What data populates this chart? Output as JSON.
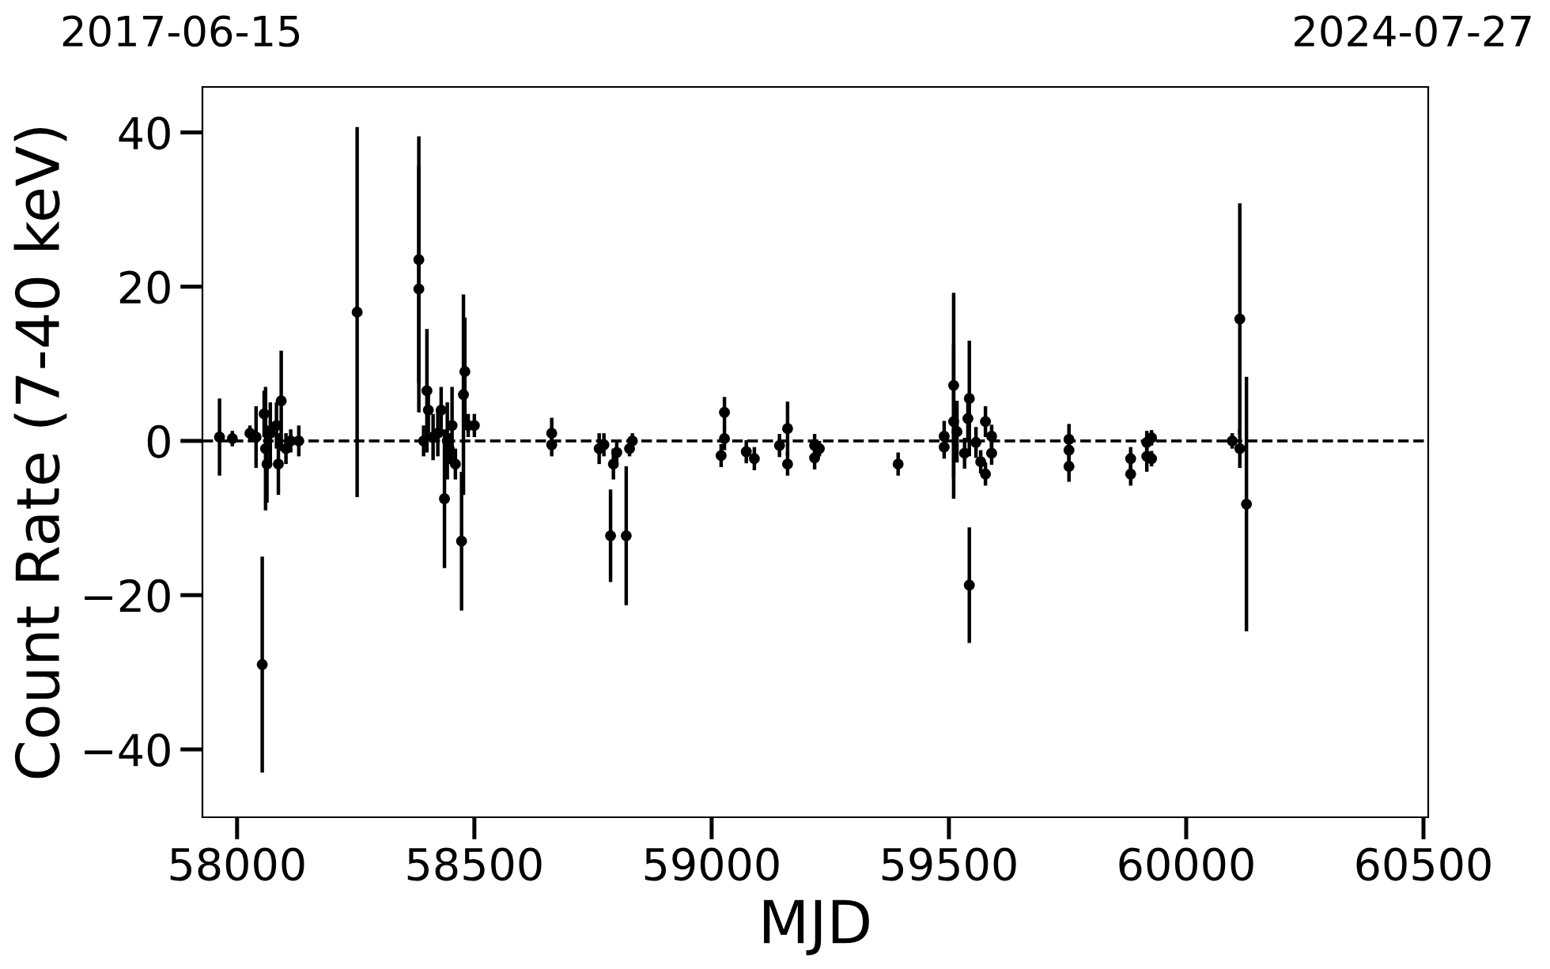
{
  "chart_data": {
    "type": "scatter",
    "xlabel": "MJD",
    "ylabel": "Count Rate (7-40 keV)",
    "annotations": [
      "2017-06-15",
      "2024-07-27"
    ],
    "xlim": [
      57927,
      60510
    ],
    "xticks": [
      58000,
      58500,
      59000,
      59500,
      60000,
      60500
    ],
    "ylim": [
      -48.8,
      45.9
    ],
    "yticks": [
      {
        "value": -40,
        "label": "−40"
      },
      {
        "value": -20,
        "label": "−20"
      },
      0,
      20,
      40
    ],
    "grid": false,
    "marker": "circle",
    "ref_lines": [
      {
        "axis": "y",
        "value": 0,
        "label": null,
        "color": "#000000",
        "line_style": "dashed"
      }
    ],
    "series": [
      {
        "color": "#000000",
        "x": [
          57963,
          57990,
          58027,
          58040,
          58053,
          58057,
          58060,
          58063,
          58070,
          58083,
          58087,
          58093,
          58103,
          58113,
          58130,
          58253,
          58383,
          58383,
          58393,
          58400,
          58403,
          58413,
          58423,
          58430,
          58437,
          58443,
          58447,
          58453,
          58460,
          58473,
          58477,
          58480,
          58487,
          58500,
          58663,
          58663,
          58763,
          58773,
          58787,
          58793,
          58800,
          58820,
          58827,
          58833,
          59020,
          59027,
          59027,
          59073,
          59090,
          59143,
          59160,
          59160,
          59217,
          59217,
          59227,
          59393,
          59490,
          59490,
          59510,
          59510,
          59517,
          59533,
          59540,
          59543,
          59543,
          59557,
          59567,
          59577,
          59577,
          59590,
          59590,
          59753,
          59753,
          59753,
          59883,
          59883,
          59917,
          59917,
          59927,
          59927,
          60097,
          60113,
          60113,
          60127
        ],
        "values": [
          0.5,
          0.3,
          1,
          0.5,
          -29,
          3.5,
          -1,
          -3,
          1,
          2,
          -3,
          5.2,
          -1,
          0,
          0,
          16.7,
          23.5,
          19.7,
          0,
          6.5,
          4,
          0.5,
          1,
          4,
          -7.5,
          0,
          -1,
          2,
          -3,
          -13,
          6,
          9,
          2,
          2,
          1,
          -0.5,
          -1,
          -0.5,
          -12.3,
          -3,
          -1.5,
          -12.3,
          -1,
          0,
          -1.9,
          3.7,
          0.3,
          -1.4,
          -2.3,
          -0.6,
          1.6,
          -3,
          -0.6,
          -2.2,
          -1,
          -3,
          0.6,
          -0.8,
          7.2,
          2.5,
          1.2,
          -1.6,
          2.9,
          5.5,
          -18.7,
          -0.2,
          -2.7,
          2.5,
          -4.3,
          0.6,
          -1.6,
          0.2,
          -1.2,
          -3.3,
          -2.3,
          -4.3,
          -0.2,
          -2,
          0.4,
          -2.3,
          0,
          15.8,
          -1,
          -8.2
        ],
        "errors": [
          5,
          1,
          1,
          4,
          14,
          3,
          8,
          5,
          4,
          3,
          4,
          6.5,
          2,
          1.5,
          2,
          24,
          16,
          16,
          2,
          8,
          3,
          3,
          3,
          3,
          9,
          5,
          2,
          5,
          2,
          9,
          13,
          7,
          1.5,
          1.5,
          2,
          1.5,
          2,
          1.5,
          6,
          2,
          1.5,
          9,
          1,
          1,
          1.5,
          2,
          1.5,
          1.5,
          1.5,
          1.5,
          3.5,
          1.5,
          1.5,
          1.5,
          1,
          1.5,
          2,
          1.5,
          12,
          10,
          4,
          2,
          3,
          7.5,
          7.5,
          2,
          1.5,
          2,
          1.5,
          1.5,
          1.5,
          2,
          1.5,
          2,
          1.5,
          1.5,
          1.5,
          2,
          1,
          1,
          1,
          15,
          2.5,
          16.5
        ]
      }
    ]
  }
}
